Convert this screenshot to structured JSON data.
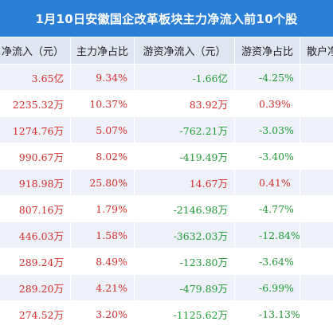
{
  "title": "1月10日安徽国企改革板块主力净流入前10个股",
  "headers": [
    "净流入（元）",
    "主力净占比",
    "游资净流入（元）",
    "游资净占比",
    "散户净"
  ],
  "rows": [
    {
      "main_in": "3.65亿",
      "main_pct": "9.34%",
      "hot_in": "-1.66亿",
      "hot_pct": "-4.25%",
      "main_dir": "red",
      "hot_dir": "green"
    },
    {
      "main_in": "2235.32万",
      "main_pct": "10.37%",
      "hot_in": "83.92万",
      "hot_pct": "0.39%",
      "main_dir": "red",
      "hot_dir": "red"
    },
    {
      "main_in": "1274.76万",
      "main_pct": "5.07%",
      "hot_in": "-762.21万",
      "hot_pct": "-3.03%",
      "main_dir": "red",
      "hot_dir": "green"
    },
    {
      "main_in": "990.67万",
      "main_pct": "8.02%",
      "hot_in": "-419.49万",
      "hot_pct": "-3.40%",
      "main_dir": "red",
      "hot_dir": "green"
    },
    {
      "main_in": "918.98万",
      "main_pct": "25.80%",
      "hot_in": "14.67万",
      "hot_pct": "0.41%",
      "main_dir": "red",
      "hot_dir": "red"
    },
    {
      "main_in": "807.16万",
      "main_pct": "1.79%",
      "hot_in": "-2146.98万",
      "hot_pct": "-4.77%",
      "main_dir": "red",
      "hot_dir": "green"
    },
    {
      "main_in": "446.03万",
      "main_pct": "1.58%",
      "hot_in": "-3632.03万",
      "hot_pct": "-12.84%",
      "main_dir": "red",
      "hot_dir": "green"
    },
    {
      "main_in": "289.24万",
      "main_pct": "8.49%",
      "hot_in": "-123.80万",
      "hot_pct": "-3.64%",
      "main_dir": "red",
      "hot_dir": "green"
    },
    {
      "main_in": "289.20万",
      "main_pct": "4.21%",
      "hot_in": "-479.89万",
      "hot_pct": "-6.99%",
      "main_dir": "red",
      "hot_dir": "green"
    },
    {
      "main_in": "274.52万",
      "main_pct": "3.20%",
      "hot_in": "-1125.62万",
      "hot_pct": "-13.13%",
      "main_dir": "red",
      "hot_dir": "green"
    }
  ],
  "colors": {
    "header_bar": "#2c7fd6",
    "positive": "#d62c2c",
    "negative": "#1f9a35",
    "stripe": "#eef2f8"
  }
}
